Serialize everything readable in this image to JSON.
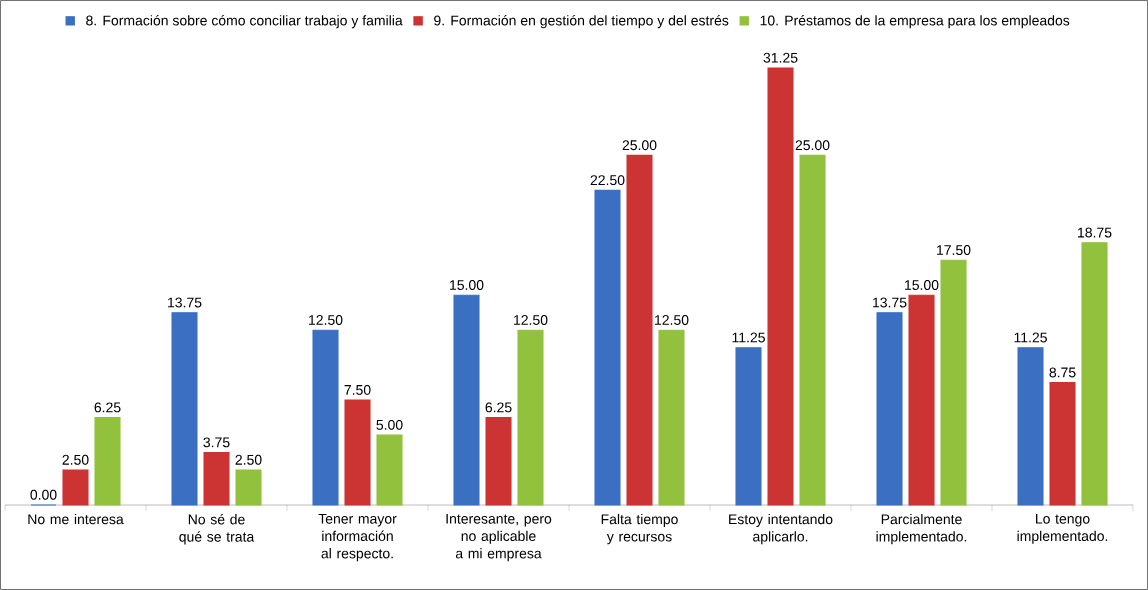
{
  "chart_data": {
    "type": "bar",
    "legend": "top",
    "categories": [
      "No me interesa",
      "No sé de qué se trata",
      "Tener mayor información al respecto.",
      "Interesante, pero no aplicable a mi empresa",
      "Falta tiempo y recursos",
      "Estoy intentando aplicarlo.",
      "Parcialmente implementado.",
      "Lo tengo implementado."
    ],
    "series": [
      {
        "name": "8. Formación sobre cómo conciliar trabajo y familia",
        "color": "#3b6fc2",
        "values": [
          0.0,
          13.75,
          12.5,
          15.0,
          22.5,
          11.25,
          13.75,
          11.25
        ],
        "value_labels": [
          "0.00",
          "13.75",
          "12.50",
          "15.00",
          "22.50",
          "11.25",
          "13.75",
          "11.25"
        ]
      },
      {
        "name": "9. Formación en gestión del tiempo y del estrés",
        "color": "#cc3333",
        "values": [
          2.5,
          3.75,
          7.5,
          6.25,
          25.0,
          31.25,
          15.0,
          8.75
        ],
        "value_labels": [
          "2.50",
          "3.75",
          "7.50",
          "6.25",
          "25.00",
          "31.25",
          "15.00",
          "8.75"
        ]
      },
      {
        "name": "10. Préstamos de la empresa para los empleados",
        "color": "#92c13d",
        "values": [
          6.25,
          2.5,
          5.0,
          12.5,
          12.5,
          25.0,
          17.5,
          18.75
        ],
        "value_labels": [
          "6.25",
          "2.50",
          "5.00",
          "12.50",
          "12.50",
          "25.00",
          "17.50",
          "18.75"
        ]
      }
    ]
  }
}
